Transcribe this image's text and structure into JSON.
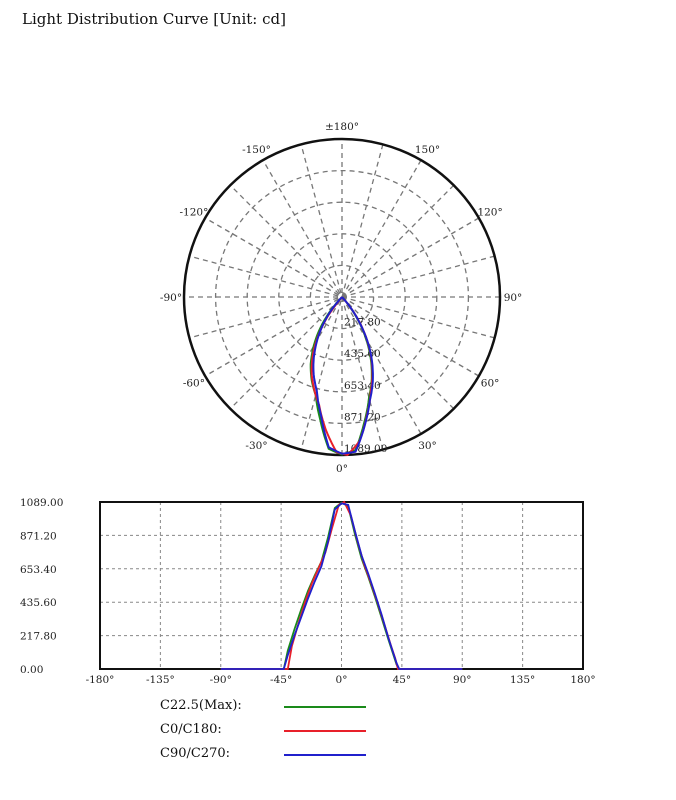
{
  "title": "Light Distribution Curve [Unit: cd]",
  "chart_data": [
    {
      "type": "polar",
      "angle_labels": [
        {
          "deg": 0,
          "text": "0°"
        },
        {
          "deg": 30,
          "text": "30°"
        },
        {
          "deg": 60,
          "text": "60°"
        },
        {
          "deg": 90,
          "text": "90°"
        },
        {
          "deg": 120,
          "text": "120°"
        },
        {
          "deg": 150,
          "text": "150°"
        },
        {
          "deg": 180,
          "text": "±180°"
        },
        {
          "deg": -150,
          "text": "-150°"
        },
        {
          "deg": -120,
          "text": "-120°"
        },
        {
          "deg": -90,
          "text": "-90°"
        },
        {
          "deg": -60,
          "text": "-60°"
        },
        {
          "deg": -30,
          "text": "-30°"
        }
      ],
      "radial_ticks": [
        "217.80",
        "435.60",
        "653.40",
        "871.20",
        "1089.00"
      ],
      "rmax": 1089,
      "grid": true
    },
    {
      "type": "line",
      "yticks": [
        "0.00",
        "217.80",
        "435.60",
        "653.40",
        "871.20",
        "1089.00"
      ],
      "xticks": [
        "-180°",
        "-135°",
        "-90°",
        "-45°",
        "0°",
        "45°",
        "90°",
        "135°",
        "180°"
      ],
      "xlim": [
        -180,
        180
      ],
      "ylim": [
        0,
        1089
      ],
      "grid": true,
      "series": [
        {
          "name": "C22.5(Max):",
          "color": "#1a8a1a",
          "x": [
            -90,
            -43,
            -40,
            -35,
            -30,
            -25,
            -20,
            -15,
            -10,
            -5,
            0,
            5,
            10,
            15,
            20,
            25,
            30,
            35,
            38,
            41,
            43,
            90
          ],
          "y": [
            0,
            0,
            120,
            260,
            390,
            510,
            610,
            700,
            860,
            1050,
            1085,
            1060,
            880,
            720,
            600,
            470,
            330,
            190,
            110,
            30,
            0,
            0
          ]
        },
        {
          "name": "C0/C180:",
          "color": "#e8202a",
          "x": [
            -90,
            -40,
            -37,
            -32,
            -27,
            -22,
            -17,
            -12,
            -7,
            -2,
            2,
            7,
            12,
            17,
            22,
            27,
            32,
            37,
            40,
            42,
            90
          ],
          "y": [
            0,
            0,
            150,
            300,
            440,
            560,
            660,
            760,
            920,
            1070,
            1089,
            1000,
            830,
            680,
            560,
            430,
            290,
            150,
            70,
            0,
            0
          ]
        },
        {
          "name": "C90/C270:",
          "color": "#2020cc",
          "x": [
            -90,
            -43,
            -40,
            -35,
            -30,
            -25,
            -20,
            -15,
            -10,
            -5,
            0,
            5,
            10,
            15,
            20,
            25,
            30,
            35,
            38,
            41,
            43,
            90
          ],
          "y": [
            0,
            0,
            90,
            220,
            340,
            460,
            570,
            670,
            830,
            1040,
            1080,
            1070,
            900,
            740,
            620,
            490,
            350,
            200,
            120,
            40,
            0,
            0
          ]
        }
      ]
    }
  ]
}
